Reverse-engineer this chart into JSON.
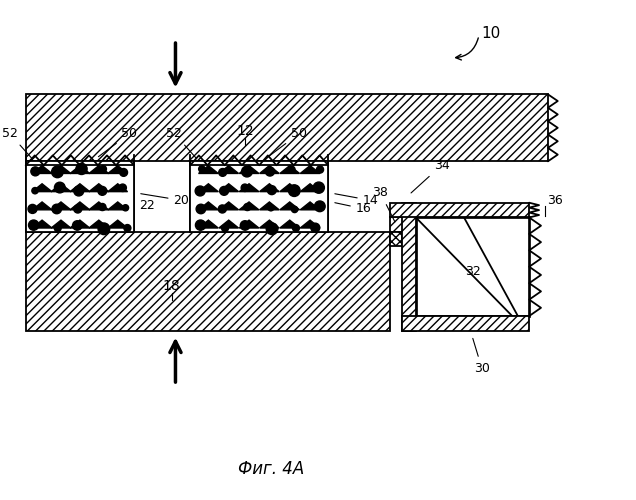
{
  "title": "Фиг. 4А",
  "bg_color": "#ffffff",
  "line_color": "#000000",
  "figsize": [
    6.36,
    5.0
  ],
  "dpi": 100
}
